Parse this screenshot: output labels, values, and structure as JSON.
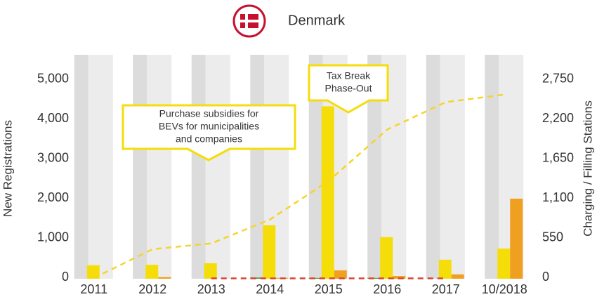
{
  "chart_data": {
    "type": "bar",
    "title": "Denmark",
    "y_label": "New Registrations",
    "y2_label": "Charging / Filling Stations",
    "categories": [
      "2011",
      "2012",
      "2013",
      "2014",
      "2015",
      "2016",
      "2017",
      "10/2018"
    ],
    "series": [
      {
        "color": "#3fa535",
        "kind": "bar",
        "slot": "left",
        "values": [
          null,
          null,
          null,
          30,
          20,
          20,
          null,
          null
        ]
      },
      {
        "color": "#f5dd0a",
        "kind": "bar",
        "slot": "middle",
        "values": [
          340,
          350,
          390,
          1350,
          4350,
          1050,
          480,
          760
        ]
      },
      {
        "color": "#f0a020",
        "kind": "bar",
        "slot": "right",
        "values": [
          null,
          40,
          null,
          20,
          210,
          70,
          110,
          2020
        ]
      },
      {
        "color": "#d9432f",
        "kind": "line",
        "axis": "y2",
        "values": [
          null,
          null,
          5,
          5,
          5,
          5,
          5,
          null
        ]
      },
      {
        "color": "#f5d42a",
        "kind": "line",
        "axis": "y2",
        "values": [
          10,
          410,
          490,
          820,
          1355,
          2070,
          2450,
          2555
        ]
      }
    ],
    "ylim": [
      0,
      5650
    ],
    "yticks": [
      0,
      {
        "value": 1000,
        "label": "1,000"
      },
      {
        "value": 2000,
        "label": "2,000"
      },
      {
        "value": 3000,
        "label": "3,000"
      },
      {
        "value": 4000,
        "label": "4,000"
      },
      {
        "value": 5000,
        "label": "5,000"
      }
    ],
    "y2lim": [
      0,
      3107.5
    ],
    "y2ticks": [
      0,
      550,
      {
        "value": 1100,
        "label": "1,100"
      },
      {
        "value": 1650,
        "label": "1,650"
      },
      {
        "value": 2200,
        "label": "2,200"
      },
      {
        "value": 2750,
        "label": "2,750"
      }
    ],
    "annotations": [
      {
        "lines": [
          "Purchase subsidies for",
          "BEVs for municipalities",
          "and companies"
        ]
      },
      {
        "lines": [
          "Tax Break",
          "Phase-Out"
        ]
      }
    ]
  }
}
